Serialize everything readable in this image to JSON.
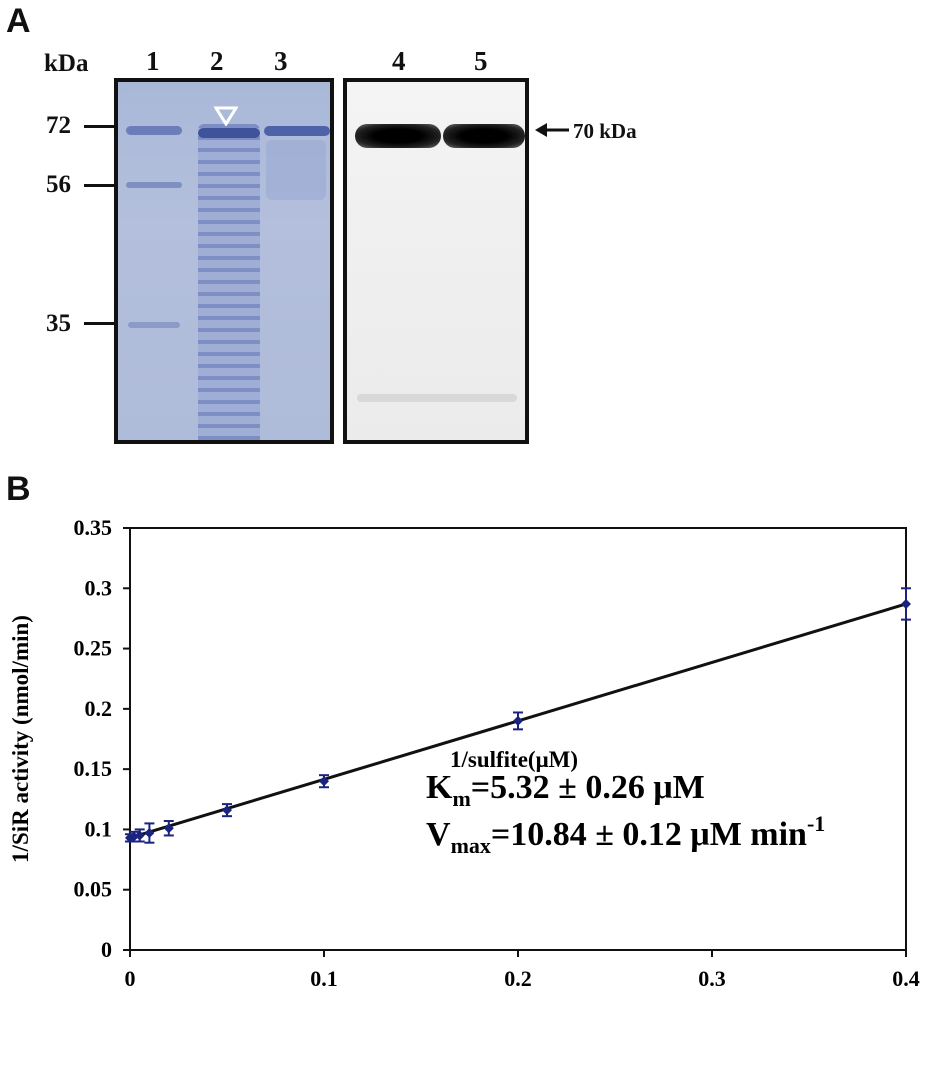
{
  "panel_a": {
    "letter": "A",
    "kda_label": "kDa",
    "lanes": [
      "1",
      "2",
      "3",
      "4",
      "5"
    ],
    "markers": [
      {
        "label": "72"
      },
      {
        "label": "56"
      },
      {
        "label": "35"
      }
    ],
    "band_annotation": "70 kDa"
  },
  "panel_b": {
    "letter": "B",
    "equation_km": {
      "main": "K",
      "sub": "m",
      "rest": "=5.32 ± 0.26 μM"
    },
    "equation_vmax": {
      "main": "V",
      "sub": "max",
      "rest": "=10.84 ± 0.12 μM min",
      "sup": "-1"
    }
  },
  "chart_data": {
    "type": "scatter",
    "xlabel": "1/sulfite(μM)",
    "ylabel": "1/SiR activity (nmol/min)",
    "xlim": [
      0,
      0.4
    ],
    "ylim": [
      0,
      0.35
    ],
    "x_ticks": [
      "0",
      "0.1",
      "0.2",
      "0.3",
      "0.4"
    ],
    "y_ticks": [
      "0",
      "0.05",
      "0.1",
      "0.15",
      "0.2",
      "0.25",
      "0.3",
      "0.35"
    ],
    "points": [
      {
        "x": 0,
        "y": 0.093,
        "err": 0.003
      },
      {
        "x": 0.002,
        "y": 0.094,
        "err": 0.004
      },
      {
        "x": 0.005,
        "y": 0.095,
        "err": 0.005
      },
      {
        "x": 0.01,
        "y": 0.097,
        "err": 0.008
      },
      {
        "x": 0.02,
        "y": 0.101,
        "err": 0.006
      },
      {
        "x": 0.05,
        "y": 0.116,
        "err": 0.005
      },
      {
        "x": 0.1,
        "y": 0.14,
        "err": 0.005
      },
      {
        "x": 0.2,
        "y": 0.19,
        "err": 0.007
      },
      {
        "x": 0.4,
        "y": 0.287,
        "err": 0.013
      }
    ],
    "fit_line": {
      "x": [
        0,
        0.4
      ],
      "y": [
        0.093,
        0.287
      ]
    },
    "point_color": "#1a237e",
    "grid": false
  }
}
